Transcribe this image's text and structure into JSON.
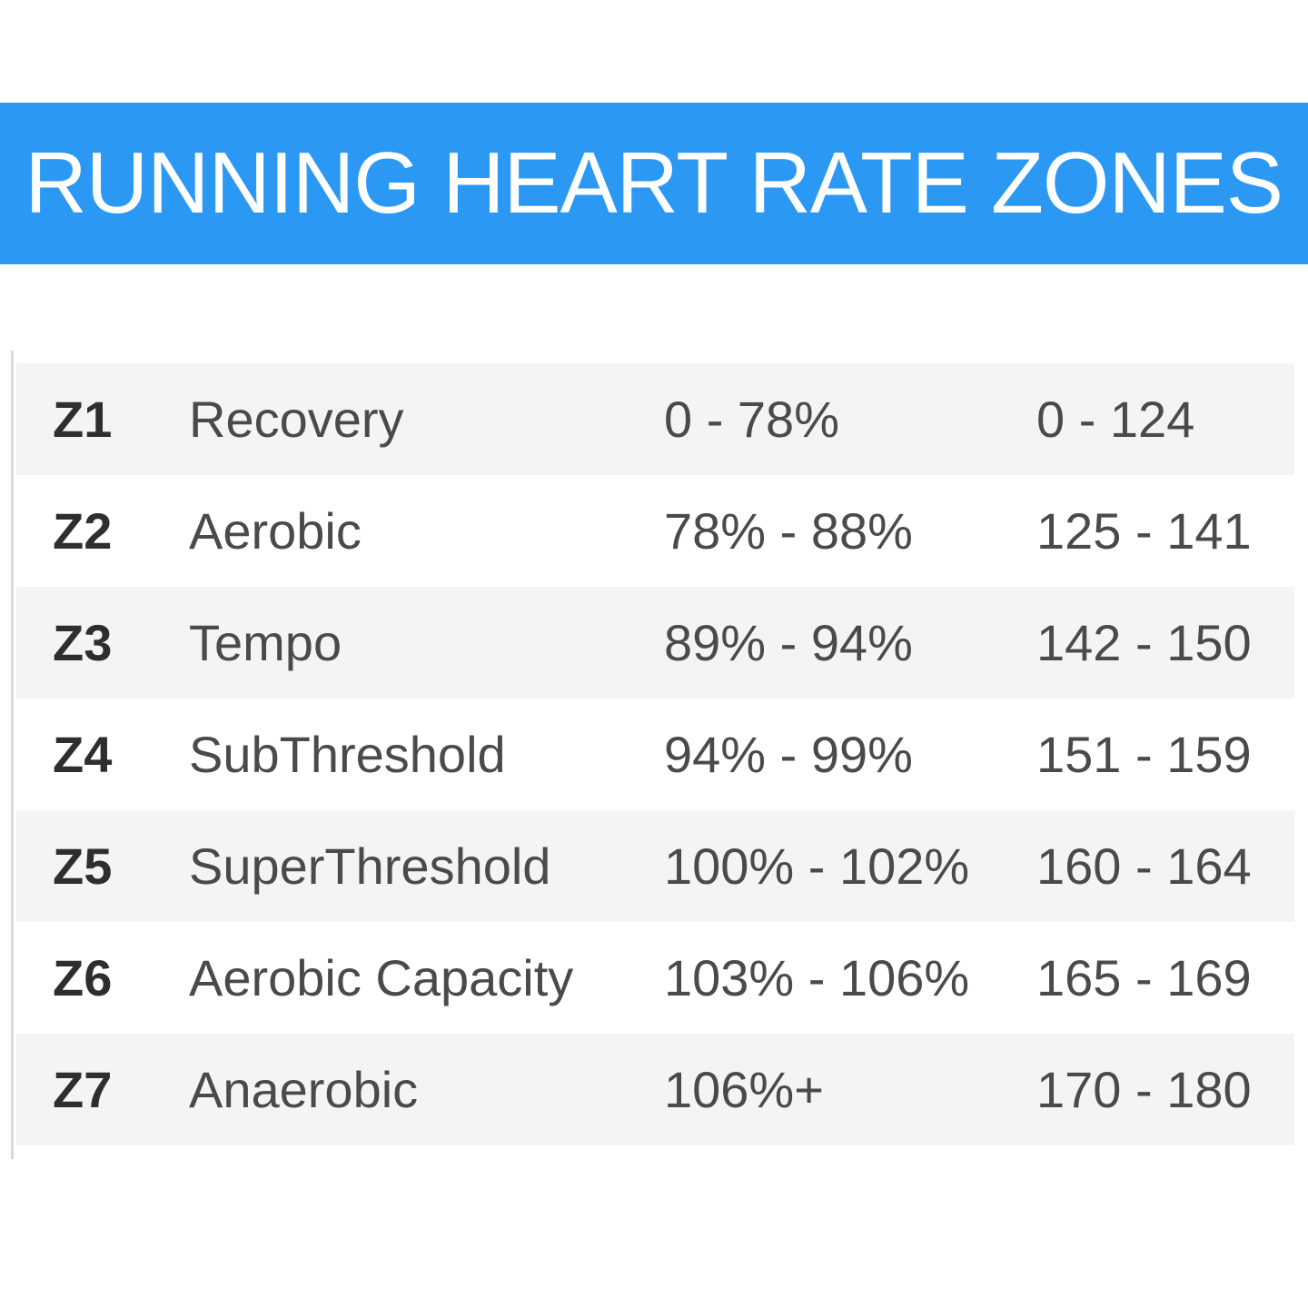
{
  "title": "RUNNING HEART RATE ZONES",
  "colors": {
    "banner": "#2b98f3",
    "banner_text": "#ffffff",
    "row_shade": "#f4f4f4",
    "text": "#4a4a4a"
  },
  "zones": [
    {
      "zone": "Z1",
      "name": "Recovery",
      "percent": "0 - 78%",
      "bpm": "0 - 124"
    },
    {
      "zone": "Z2",
      "name": "Aerobic",
      "percent": "78% - 88%",
      "bpm": "125 - 141"
    },
    {
      "zone": "Z3",
      "name": "Tempo",
      "percent": "89% - 94%",
      "bpm": "142 - 150"
    },
    {
      "zone": "Z4",
      "name": "SubThreshold",
      "percent": "94% - 99%",
      "bpm": "151 - 159"
    },
    {
      "zone": "Z5",
      "name": "SuperThreshold",
      "percent": "100% - 102%",
      "bpm": "160 - 164"
    },
    {
      "zone": "Z6",
      "name": "Aerobic Capacity",
      "percent": "103% - 106%",
      "bpm": "165 - 169"
    },
    {
      "zone": "Z7",
      "name": "Anaerobic",
      "percent": "106%+",
      "bpm": "170 - 180"
    }
  ]
}
